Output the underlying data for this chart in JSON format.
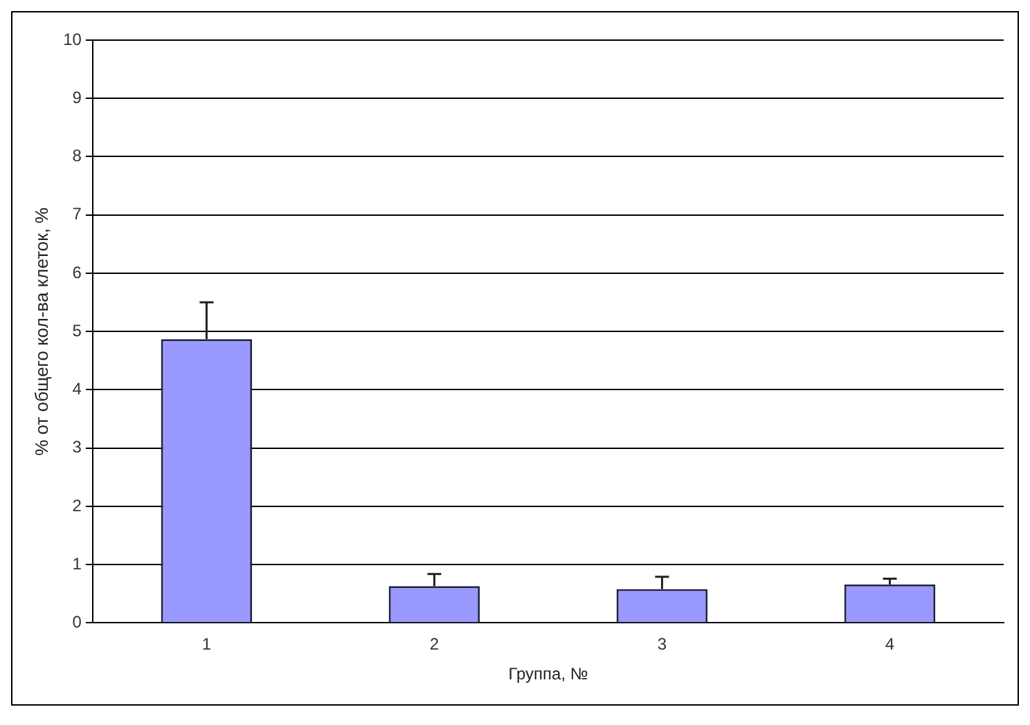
{
  "chart_data": {
    "type": "bar",
    "xlabel": "Группа, №",
    "ylabel": "% от общего кол-ва клеток, %",
    "categories": [
      "1",
      "2",
      "3",
      "4"
    ],
    "values": [
      4.87,
      0.63,
      0.58,
      0.66
    ],
    "errors": [
      [
        4.87,
        5.5
      ],
      [
        0.63,
        0.84
      ],
      [
        0.58,
        0.79
      ],
      [
        0.66,
        0.76
      ]
    ],
    "color": "#9999ff",
    "ylim": [
      0,
      10
    ],
    "yticks": [
      0,
      1,
      2,
      3,
      4,
      5,
      6,
      7,
      8,
      9,
      10
    ],
    "grid": "y",
    "legend": false
  }
}
